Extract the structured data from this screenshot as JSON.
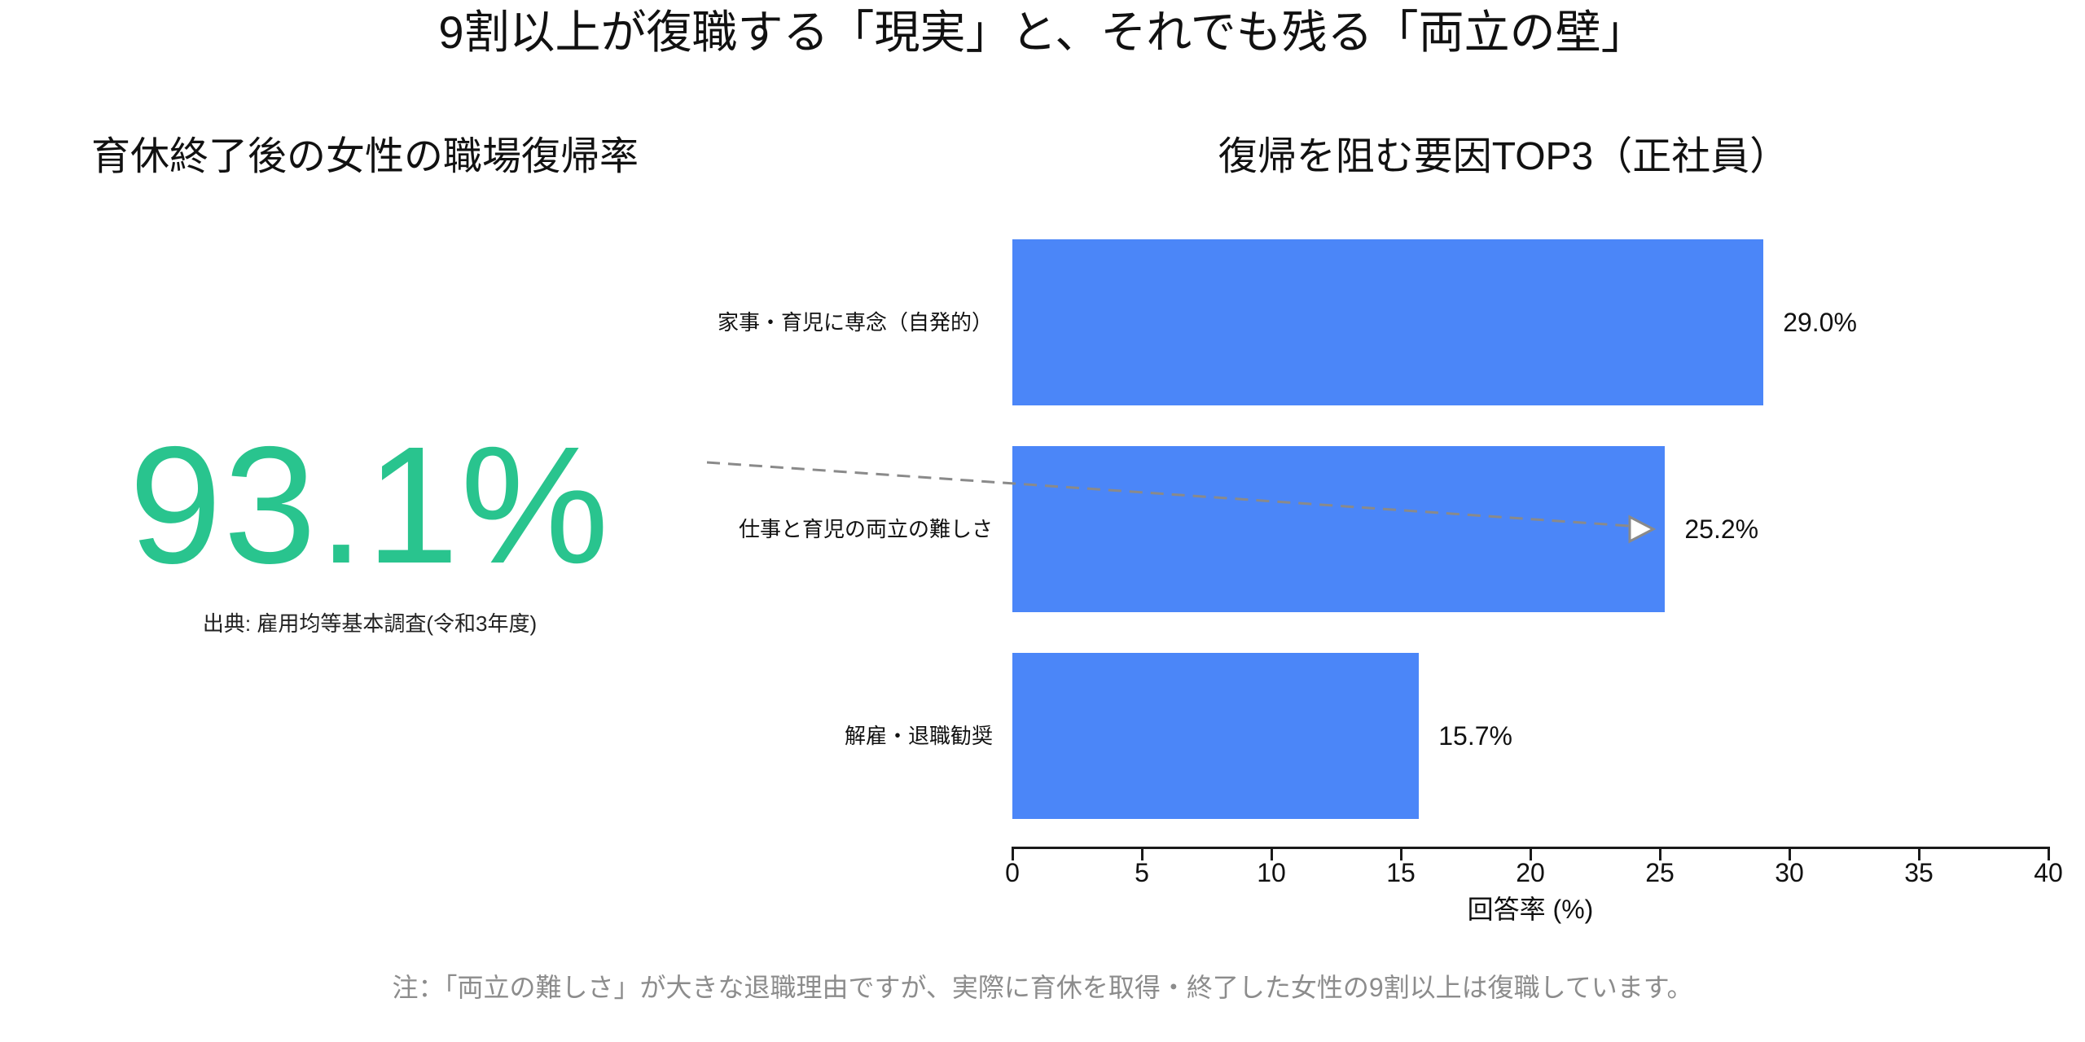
{
  "page": {
    "title": "9割以上が復職する「現実」と、それでも残る「両立の壁」",
    "footnote": "注：「両立の難しさ」が大きな退職理由ですが、実際に育休を取得・終了した女性の9割以上は復職しています。",
    "background_color": "#ffffff"
  },
  "left_panel": {
    "heading": "育休終了後の女性の職場復帰率",
    "big_number": "93.1%",
    "big_number_color": "#29C48E",
    "source": "出典: 雇用均等基本調査(令和3年度)"
  },
  "chart_data": {
    "type": "bar",
    "orientation": "horizontal",
    "title": "復帰を阻む要因TOP3（正社員）",
    "categories": [
      "家事・育児に専念（自発的）",
      "仕事と育児の両立の難しさ",
      "解雇・退職勧奨"
    ],
    "values": [
      29.0,
      25.2,
      15.7
    ],
    "value_labels": [
      "29.0%",
      "25.2%",
      "15.7%"
    ],
    "xlabel": "回答率 (%)",
    "xlim": [
      0,
      40
    ],
    "xticks": [
      0,
      5,
      10,
      15,
      20,
      25,
      30,
      35,
      40
    ],
    "bar_color": "#4B86F8",
    "axis_color": "#1a1a1a",
    "grid": false,
    "legend": "none",
    "annotation": {
      "style": "dashed-arrow",
      "color": "#8a8a8a",
      "from": "93.1% figure",
      "points_to": "25.2%"
    }
  }
}
